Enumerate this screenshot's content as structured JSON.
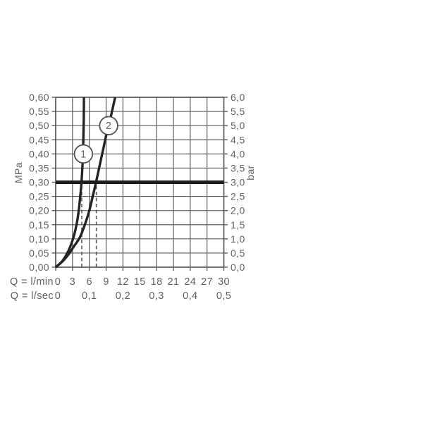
{
  "chart_data": {
    "type": "line",
    "title": "",
    "x_axis": {
      "row1_label": "Q = l/min",
      "row1_ticks": [
        {
          "value": "0",
          "q": 0
        },
        {
          "value": "3",
          "q": 3
        },
        {
          "value": "6",
          "q": 6
        },
        {
          "value": "9",
          "q": 9
        },
        {
          "value": "12",
          "q": 12
        },
        {
          "value": "15",
          "q": 15
        },
        {
          "value": "18",
          "q": 18
        },
        {
          "value": "21",
          "q": 21
        },
        {
          "value": "24",
          "q": 24
        },
        {
          "value": "27",
          "q": 27
        },
        {
          "value": "30",
          "q": 30
        }
      ],
      "row2_label": "Q = l/sec",
      "row2_ticks": [
        {
          "value": "0",
          "q": 0
        },
        {
          "value": "0,1",
          "q": 6
        },
        {
          "value": "0,2",
          "q": 12
        },
        {
          "value": "0,3",
          "q": 18
        },
        {
          "value": "0,4",
          "q": 24
        },
        {
          "value": "0,5",
          "q": 30
        }
      ],
      "range_lmin": [
        0,
        30
      ],
      "gridline_step_lmin": 3
    },
    "y_axis_left": {
      "unit_label": "MPa",
      "ticks": [
        "0,00",
        "0,05",
        "0,10",
        "0,15",
        "0,20",
        "0,25",
        "0,30",
        "0,35",
        "0,40",
        "0,45",
        "0,50",
        "0,55",
        "0,60"
      ],
      "range_mpa": [
        0,
        0.6
      ],
      "gridline_step_mpa": 0.05
    },
    "y_axis_right": {
      "unit_label": "bar",
      "ticks": [
        "0,0",
        "0,5",
        "1,0",
        "1,5",
        "2,0",
        "2,5",
        "3,0",
        "3,5",
        "4,0",
        "4,5",
        "5,0",
        "5,5",
        "6,0"
      ],
      "range_bar": [
        0,
        6.0
      ]
    },
    "series": [
      {
        "name": "1",
        "label_position_q_mpa": [
          4.95,
          0.4
        ],
        "points_q_mpa": [
          [
            0,
            0
          ],
          [
            1.2,
            0.022
          ],
          [
            2.2,
            0.055
          ],
          [
            3.0,
            0.094
          ],
          [
            3.5,
            0.13
          ],
          [
            3.9,
            0.17
          ],
          [
            4.2,
            0.215
          ],
          [
            4.45,
            0.265
          ],
          [
            4.6,
            0.3
          ],
          [
            4.78,
            0.36
          ],
          [
            4.9,
            0.43
          ],
          [
            5.0,
            0.52
          ],
          [
            5.05,
            0.6
          ]
        ]
      },
      {
        "name": "2",
        "label_position_q_mpa": [
          9.45,
          0.5
        ],
        "points_q_mpa": [
          [
            0,
            0
          ],
          [
            1.2,
            0.02
          ],
          [
            2.4,
            0.048
          ],
          [
            3.2,
            0.072
          ],
          [
            4.3,
            0.105
          ],
          [
            5.2,
            0.15
          ],
          [
            6.0,
            0.2
          ],
          [
            6.6,
            0.25
          ],
          [
            7.2,
            0.3
          ],
          [
            7.8,
            0.355
          ],
          [
            8.4,
            0.41
          ],
          [
            9.0,
            0.465
          ],
          [
            9.45,
            0.5
          ],
          [
            10.1,
            0.555
          ],
          [
            10.6,
            0.6
          ]
        ]
      }
    ],
    "reference_line_mpa": 0.3,
    "dashed_flow_markers_lmin": [
      4.65,
      7.25
    ],
    "legend_position": "none",
    "grid": "on",
    "colors": {
      "grid": "#5b5c5f",
      "text": "#606165",
      "curve": "#242427",
      "reference_line": "#1d1d1f",
      "dashed_marker": "#5b5c5f",
      "circle_fill": "#ffffff",
      "background": "#ffffff"
    }
  }
}
